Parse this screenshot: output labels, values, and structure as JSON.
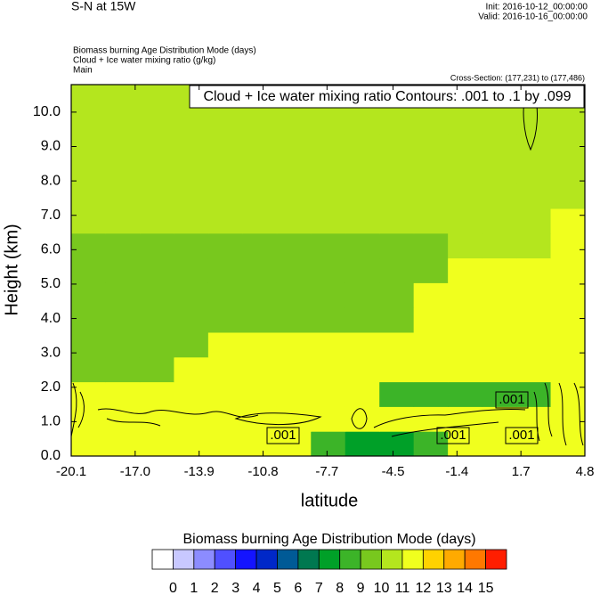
{
  "chart_data": {
    "type": "contour",
    "title": "S-N at 15W",
    "init": "Init: 2016-10-12_00:00:00",
    "valid": "Valid: 2016-10-16_00:00:00",
    "subtitles": [
      "Biomass burning Age Distribution Mode   (days)",
      "Cloud + Ice water mixing ratio   (g/kg)",
      "Main"
    ],
    "cross_section": "Cross-Section: (177,231) to (177,486)",
    "contour_legend": "Cloud + Ice water mixing ratio Contours: .001 to .1 by .099",
    "xlabel": "latitude",
    "ylabel": "Height (km)",
    "colorbar_title": "Biomass burning Age Distribution Mode  (days)",
    "annotations": [
      ".001",
      ".001",
      ".001",
      ".001"
    ],
    "xlim": [
      -20.1,
      4.8
    ],
    "ylim": [
      0,
      10.8
    ],
    "xticks": [
      -20.1,
      {
        "value": -17,
        "label": "-17.0"
      },
      -13.9,
      -10.8,
      -7.7,
      -4.5,
      -1.4,
      1.7,
      4.8
    ],
    "yticks": [
      {
        "value": 0,
        "label": "0.0"
      },
      {
        "value": 1,
        "label": "1.0"
      },
      {
        "value": 2,
        "label": "2.0"
      },
      {
        "value": 3,
        "label": "3.0"
      },
      {
        "value": 4,
        "label": "4.0"
      },
      {
        "value": 5,
        "label": "5.0"
      },
      {
        "value": 6,
        "label": "6.0"
      },
      {
        "value": 7,
        "label": "7.0"
      },
      {
        "value": 8,
        "label": "8.0"
      },
      {
        "value": 9,
        "label": "9.0"
      },
      {
        "value": 10,
        "label": "10.0"
      }
    ],
    "levels": [
      0,
      1,
      2,
      3,
      4,
      5,
      6,
      7,
      8,
      9,
      10,
      11,
      12,
      13,
      14,
      15
    ],
    "colors": [
      "#ffffff",
      "#c8c8ff",
      "#8c8cff",
      "#5050ff",
      "#1414ff",
      "#0028c8",
      "#005a96",
      "#007850",
      "#00a028",
      "#3cb428",
      "#78c81e",
      "#b4e61e",
      "#f0ff1e",
      "#ffd200",
      "#ffaa00",
      "#ff7800",
      "#ff1e00"
    ],
    "x_edges": [
      -20.1,
      -18.44,
      -16.78,
      -15.12,
      -13.46,
      -11.8,
      -10.14,
      -8.48,
      -6.82,
      -5.16,
      -3.5,
      -1.84,
      -0.18,
      1.48,
      3.14,
      4.8
    ],
    "y_edges": [
      0,
      0.72,
      1.44,
      2.16,
      2.88,
      3.6,
      4.32,
      5.04,
      5.76,
      6.48,
      7.2,
      7.92,
      8.64,
      9.36,
      10.08,
      10.8
    ],
    "z": [
      [
        11.5,
        11.5,
        11.5,
        11.5,
        11.5,
        11.5,
        11.5,
        8.5,
        7.5,
        7.5,
        8.5,
        11.5,
        11.5,
        11.5,
        11.5
      ],
      [
        11.5,
        11.5,
        11.5,
        11.5,
        11.5,
        11.5,
        11.5,
        11.5,
        11.5,
        11.5,
        11.5,
        11.5,
        11.5,
        11.5,
        11.5
      ],
      [
        11.5,
        11.5,
        11.5,
        11.5,
        11.5,
        11.5,
        11.5,
        11.5,
        11.5,
        8.5,
        8.5,
        8.5,
        8.5,
        8.5,
        11.5
      ],
      [
        9.5,
        9.5,
        9.5,
        11.5,
        11.5,
        11.5,
        11.5,
        11.5,
        11.5,
        11.5,
        11.5,
        11.5,
        11.5,
        11.5,
        11.5
      ],
      [
        9.5,
        9.5,
        9.5,
        9.5,
        11.5,
        11.5,
        11.5,
        11.5,
        11.5,
        11.5,
        11.5,
        11.5,
        11.5,
        11.5,
        11.5
      ],
      [
        9.5,
        9.5,
        9.5,
        9.5,
        9.5,
        9.5,
        9.5,
        9.5,
        9.5,
        9.5,
        11.5,
        11.5,
        11.5,
        11.5,
        11.5
      ],
      [
        9.5,
        9.5,
        9.5,
        9.5,
        9.5,
        9.5,
        9.5,
        9.5,
        9.5,
        9.5,
        11.5,
        11.5,
        11.5,
        11.5,
        11.5
      ],
      [
        9.5,
        9.5,
        9.5,
        9.5,
        9.5,
        9.5,
        9.5,
        9.5,
        9.5,
        9.5,
        9.5,
        11.5,
        11.5,
        11.5,
        11.5
      ],
      [
        9.5,
        9.5,
        9.5,
        9.5,
        9.5,
        9.5,
        9.5,
        9.5,
        9.5,
        9.5,
        9.5,
        10.5,
        10.5,
        10.5,
        11.5
      ],
      [
        10.5,
        10.5,
        10.5,
        10.5,
        10.5,
        10.5,
        10.5,
        10.5,
        10.5,
        10.5,
        10.5,
        10.5,
        10.5,
        10.5,
        11.5
      ],
      [
        10.5,
        10.5,
        10.5,
        10.5,
        10.5,
        10.5,
        10.5,
        10.5,
        10.5,
        10.5,
        10.5,
        10.5,
        10.5,
        10.5,
        10.5
      ],
      [
        10.5,
        10.5,
        10.5,
        10.5,
        10.5,
        10.5,
        10.5,
        10.5,
        10.5,
        10.5,
        10.5,
        10.5,
        10.5,
        10.5,
        10.5
      ],
      [
        10.5,
        10.5,
        10.5,
        10.5,
        10.5,
        10.5,
        10.5,
        10.5,
        10.5,
        10.5,
        10.5,
        10.5,
        10.5,
        10.5,
        10.5
      ],
      [
        10.5,
        10.5,
        10.5,
        10.5,
        10.5,
        10.5,
        10.5,
        10.5,
        10.5,
        10.5,
        10.5,
        10.5,
        10.5,
        10.5,
        10.5
      ],
      [
        10.5,
        10.5,
        10.5,
        10.5,
        10.5,
        10.5,
        10.5,
        10.5,
        10.5,
        10.5,
        10.5,
        10.5,
        10.5,
        10.5,
        10.5
      ]
    ]
  }
}
